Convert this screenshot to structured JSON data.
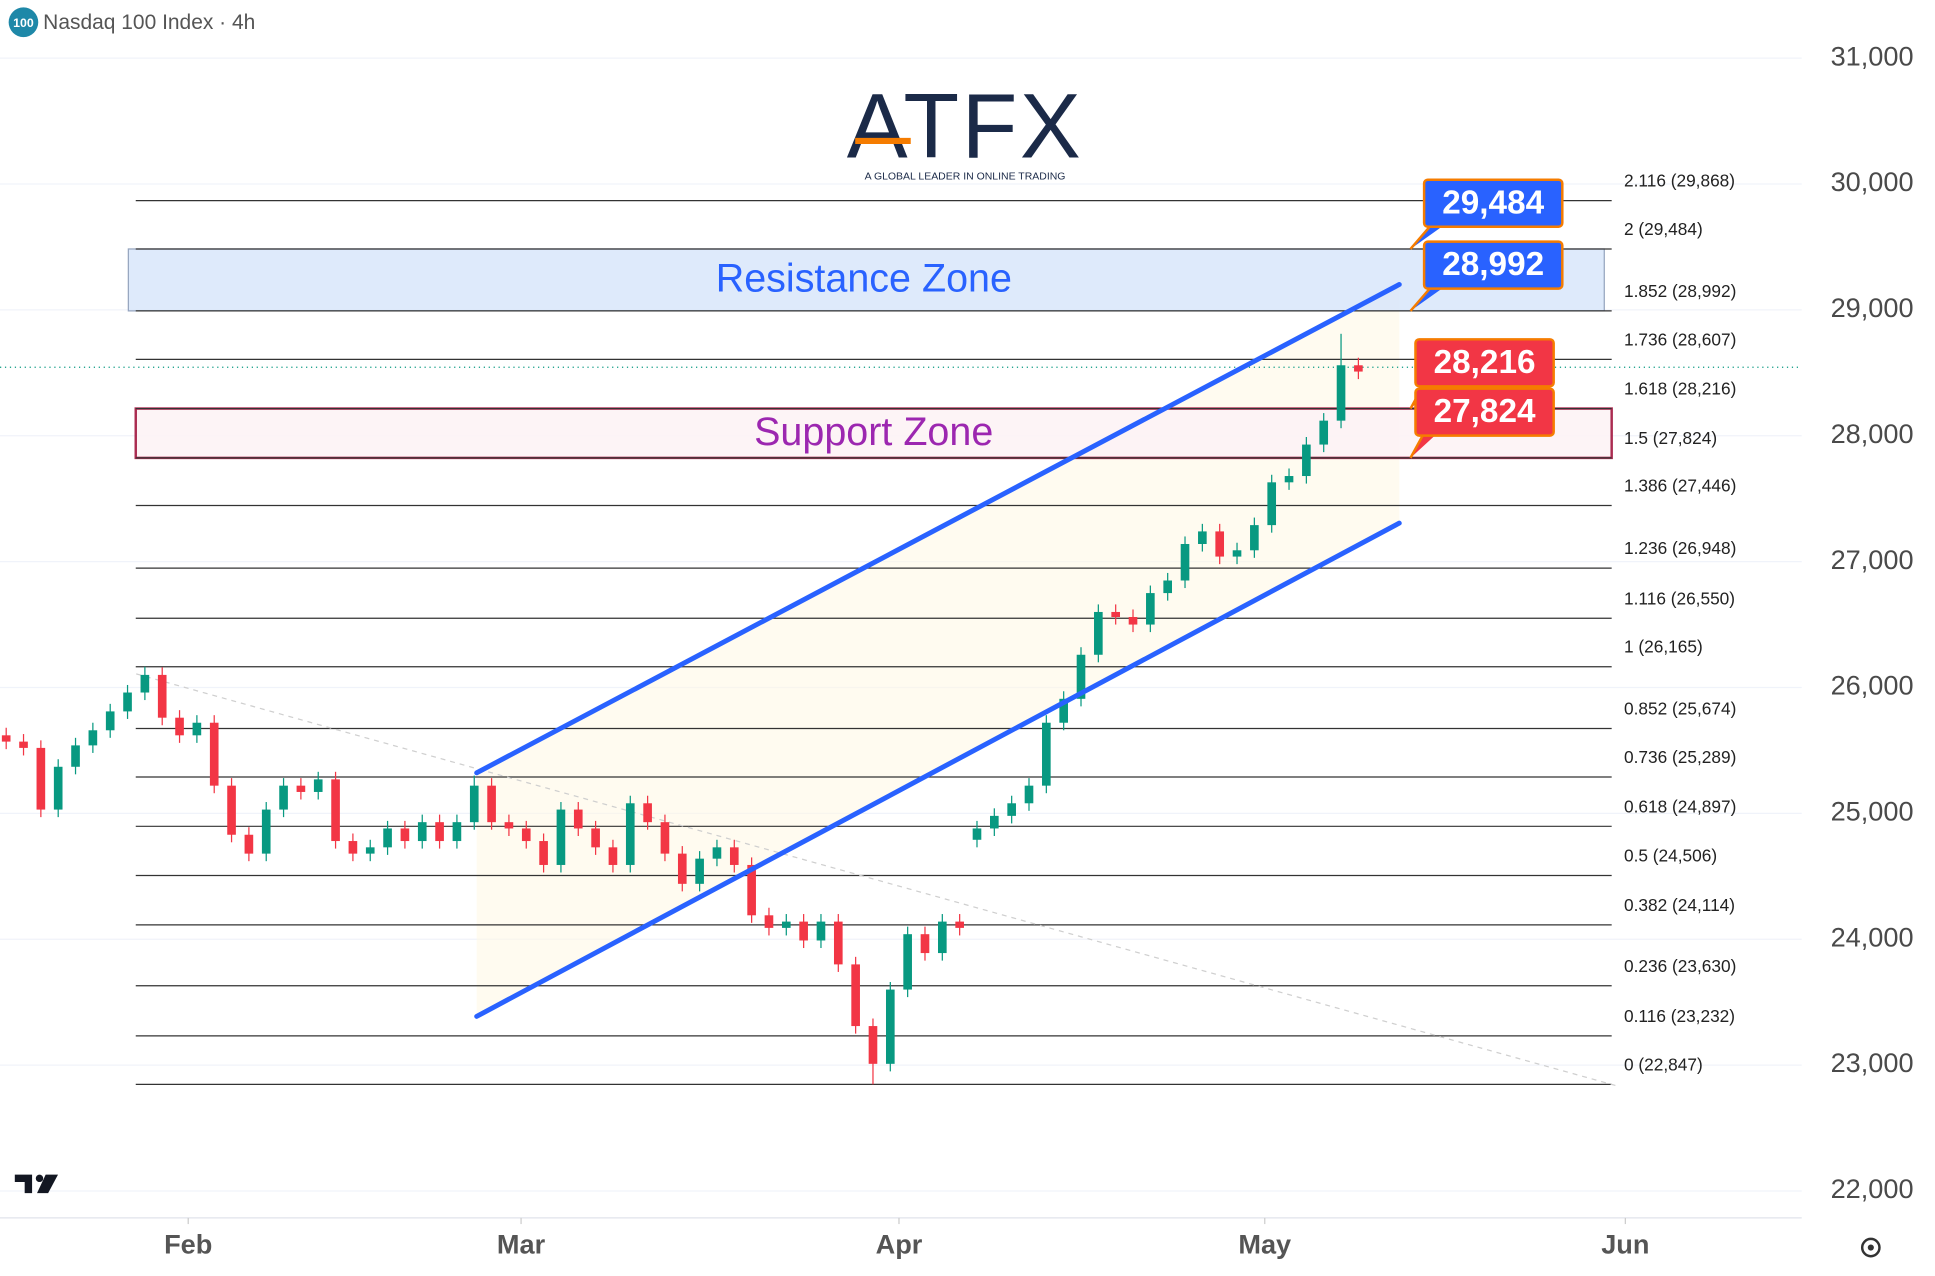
{
  "chart_data": {
    "type": "candlestick",
    "title": "Nasdaq 100 Index · 4h",
    "badge": "100",
    "up_color": "#089981",
    "down_color": "#f23645",
    "grid": true,
    "ylim": [
      21786,
      31462
    ],
    "yticks": [
      {
        "value": 22000,
        "label": "22,000"
      },
      {
        "value": 23000,
        "label": "23,000"
      },
      {
        "value": 24000,
        "label": "24,000"
      },
      {
        "value": 25000,
        "label": "25,000"
      },
      {
        "value": 26000,
        "label": "26,000"
      },
      {
        "value": 27000,
        "label": "27,000"
      },
      {
        "value": 28000,
        "label": "28,000"
      },
      {
        "value": 29000,
        "label": "29,000"
      },
      {
        "value": 30000,
        "label": "30,000"
      },
      {
        "value": 31000,
        "label": "31,000"
      }
    ],
    "xlim": [
      -0.357,
      103.93
    ],
    "xticks": [
      {
        "value": 10.5,
        "label": "Feb"
      },
      {
        "value": 29.7,
        "label": "Mar"
      },
      {
        "value": 51.5,
        "label": "Apr"
      },
      {
        "value": 72.6,
        "label": "May"
      },
      {
        "value": 93.4,
        "label": "Jun"
      }
    ],
    "x": [
      0,
      1,
      2,
      3,
      4,
      5,
      6,
      7,
      8,
      9,
      10,
      11,
      12,
      13,
      14,
      15,
      16,
      17,
      18,
      19,
      20,
      21,
      22,
      23,
      24,
      25,
      26,
      27,
      28,
      29,
      30,
      31,
      32,
      33,
      34,
      35,
      36,
      37,
      38,
      39,
      40,
      41,
      42,
      43,
      44,
      45,
      46,
      47,
      48,
      49,
      50,
      51,
      52,
      53,
      54,
      55,
      56,
      57,
      58,
      59,
      60,
      61,
      62,
      63,
      64,
      65,
      66,
      67,
      68,
      69,
      70,
      71,
      72,
      73,
      74,
      75,
      76,
      77,
      78
    ],
    "open": [
      25620,
      25570,
      25520,
      25030,
      25370,
      25540,
      25660,
      25810,
      25960,
      26100,
      25760,
      25620,
      25720,
      25220,
      24830,
      24680,
      25030,
      25220,
      25170,
      25270,
      24780,
      24680,
      24730,
      24880,
      24780,
      24930,
      24780,
      24930,
      25220,
      24930,
      24880,
      24780,
      24590,
      25030,
      24880,
      24730,
      24590,
      25080,
      24930,
      24680,
      24440,
      24640,
      24730,
      24590,
      24190,
      24090,
      24140,
      23990,
      24140,
      23800,
      23310,
      23010,
      23600,
      24040,
      23890,
      24140,
      24790,
      24880,
      24980,
      25080,
      25220,
      25720,
      25910,
      26260,
      26600,
      26560,
      26500,
      26750,
      26850,
      27140,
      27240,
      27040,
      27090,
      27290,
      27630,
      27680,
      27930,
      28120,
      28560
    ],
    "high": [
      25680,
      25630,
      25580,
      25430,
      25600,
      25720,
      25870,
      26020,
      26165,
      26160,
      25820,
      25780,
      25780,
      25280,
      24890,
      25090,
      25280,
      25280,
      25330,
      25330,
      24840,
      24790,
      24940,
      24940,
      24990,
      24990,
      24990,
      25300,
      25280,
      24990,
      24940,
      24840,
      25090,
      25090,
      24940,
      24790,
      25140,
      25140,
      24990,
      24740,
      24700,
      24790,
      24790,
      24650,
      24250,
      24200,
      24200,
      24200,
      24200,
      23860,
      23370,
      23660,
      24100,
      24100,
      24200,
      24200,
      24940,
      25040,
      25140,
      25280,
      25780,
      25970,
      26320,
      26660,
      26660,
      26620,
      26810,
      26910,
      27200,
      27300,
      27300,
      27150,
      27350,
      27690,
      27740,
      27990,
      28180,
      28810,
      28620
    ],
    "low": [
      25510,
      25460,
      24970,
      24970,
      25310,
      25480,
      25600,
      25750,
      25900,
      25700,
      25560,
      25560,
      25160,
      24770,
      24620,
      24620,
      24970,
      25110,
      25110,
      24720,
      24620,
      24620,
      24670,
      24720,
      24720,
      24720,
      24720,
      24870,
      24870,
      24820,
      24720,
      24530,
      24530,
      24820,
      24670,
      24530,
      24530,
      24870,
      24620,
      24380,
      24380,
      24580,
      24530,
      24130,
      24030,
      24030,
      23930,
      23930,
      23740,
      23250,
      22847,
      22950,
      23540,
      23830,
      23830,
      24030,
      24730,
      24820,
      24920,
      25020,
      25160,
      25660,
      25850,
      26200,
      26500,
      26440,
      26440,
      26690,
      26790,
      27080,
      26980,
      26980,
      27030,
      27230,
      27570,
      27620,
      27870,
      28060,
      28450
    ],
    "close": [
      25570,
      25520,
      25030,
      25370,
      25540,
      25660,
      25810,
      25960,
      26100,
      25760,
      25620,
      25720,
      25220,
      24830,
      24680,
      25030,
      25220,
      25170,
      25270,
      24780,
      24680,
      24730,
      24880,
      24780,
      24930,
      24780,
      24930,
      25220,
      24930,
      24880,
      24780,
      24590,
      25030,
      24880,
      24730,
      24590,
      25080,
      24930,
      24680,
      24440,
      24640,
      24730,
      24590,
      24190,
      24090,
      24140,
      23990,
      24140,
      23800,
      23310,
      23010,
      23600,
      24040,
      23890,
      24140,
      24090,
      24880,
      24980,
      25080,
      25220,
      25720,
      25910,
      26260,
      26600,
      26560,
      26500,
      26750,
      26850,
      27140,
      27240,
      27040,
      27090,
      27290,
      27630,
      27680,
      27930,
      28120,
      28560,
      28510
    ],
    "price_line": 28544,
    "fib_levels": [
      {
        "value": 29868,
        "label": "2.116 (29,868)"
      },
      {
        "value": 29484,
        "label": "2 (29,484)"
      },
      {
        "value": 28992,
        "label": "1.852 (28,992)"
      },
      {
        "value": 28607,
        "label": "1.736 (28,607)"
      },
      {
        "value": 28216,
        "label": "1.618 (28,216)"
      },
      {
        "value": 27824,
        "label": "1.5 (27,824)"
      },
      {
        "value": 27446,
        "label": "1.386 (27,446)"
      },
      {
        "value": 26948,
        "label": "1.236 (26,948)"
      },
      {
        "value": 26550,
        "label": "1.116 (26,550)"
      },
      {
        "value": 26165,
        "label": "1 (26,165)"
      },
      {
        "value": 25674,
        "label": "0.852 (25,674)"
      },
      {
        "value": 25289,
        "label": "0.736 (25,289)"
      },
      {
        "value": 24897,
        "label": "0.618 (24,897)"
      },
      {
        "value": 24506,
        "label": "0.5 (24,506)"
      },
      {
        "value": 24114,
        "label": "0.382 (24,114)"
      },
      {
        "value": 23630,
        "label": "0.236 (23,630)"
      },
      {
        "value": 23232,
        "label": "0.116 (23,232)"
      },
      {
        "value": 22847,
        "label": "0 (22,847)"
      }
    ],
    "zones": [
      {
        "label": "Resistance Zone",
        "low": 28992,
        "high": 29484,
        "color": "#2962ff"
      },
      {
        "label": "Support Zone",
        "low": 27824,
        "high": 28216,
        "color": "#9c27b0"
      }
    ],
    "callouts": [
      {
        "value": 29484,
        "label": "29,484",
        "color": "#2962ff"
      },
      {
        "value": 28992,
        "label": "28,992",
        "color": "#2962ff"
      },
      {
        "value": 28216,
        "label": "28,216",
        "color": "#f23645"
      },
      {
        "value": 27824,
        "label": "27,824",
        "color": "#f23645"
      }
    ],
    "channels": [
      {
        "x": [
          27.14,
          80.36
        ],
        "y": [
          25322,
          29202
        ]
      },
      {
        "x": [
          27.14,
          80.36
        ],
        "y": [
          23387,
          27306
        ]
      }
    ],
    "trendline": {
      "x": [
        7.5,
        92.86
      ],
      "y": [
        26108,
        22837
      ]
    }
  },
  "logo": {
    "name": "ATFX",
    "tagline": "A GLOBAL LEADER IN ONLINE TRADING"
  }
}
